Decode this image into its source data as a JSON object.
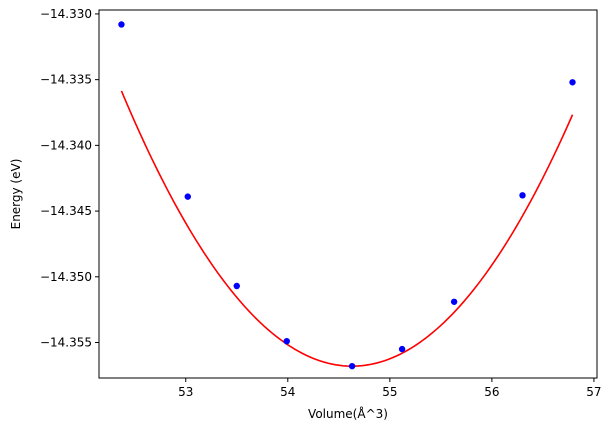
{
  "chart_data": {
    "type": "scatter",
    "title": "",
    "xlabel": "Volume(Å^3)",
    "ylabel": "Energy (eV)",
    "xlim": [
      52.15,
      57.03
    ],
    "ylim": [
      -14.3577,
      -14.3297
    ],
    "x_ticks": [
      53,
      54,
      55,
      56,
      57
    ],
    "x_tick_labels": [
      "53",
      "54",
      "55",
      "56",
      "57"
    ],
    "y_ticks": [
      -14.33,
      -14.335,
      -14.34,
      -14.345,
      -14.35,
      -14.355
    ],
    "y_tick_labels": [
      "−14.330",
      "−14.335",
      "−14.340",
      "−14.345",
      "−14.350",
      "−14.355"
    ],
    "grid": false,
    "series": [
      {
        "kind": "points",
        "color": "#0000ff",
        "x": [
          52.37,
          53.02,
          53.5,
          53.99,
          54.63,
          55.12,
          55.63,
          56.3,
          56.79
        ],
        "y": [
          -14.3308,
          -14.3439,
          -14.3507,
          -14.3549,
          -14.3568,
          -14.3555,
          -14.3519,
          -14.3438,
          -14.3352
        ]
      },
      {
        "kind": "fit-curve",
        "color": "#ff0000",
        "fit": {
          "a": 0.0041,
          "x0": 54.63,
          "y0": -14.3568
        },
        "x_range": [
          52.37,
          56.79
        ]
      }
    ]
  }
}
